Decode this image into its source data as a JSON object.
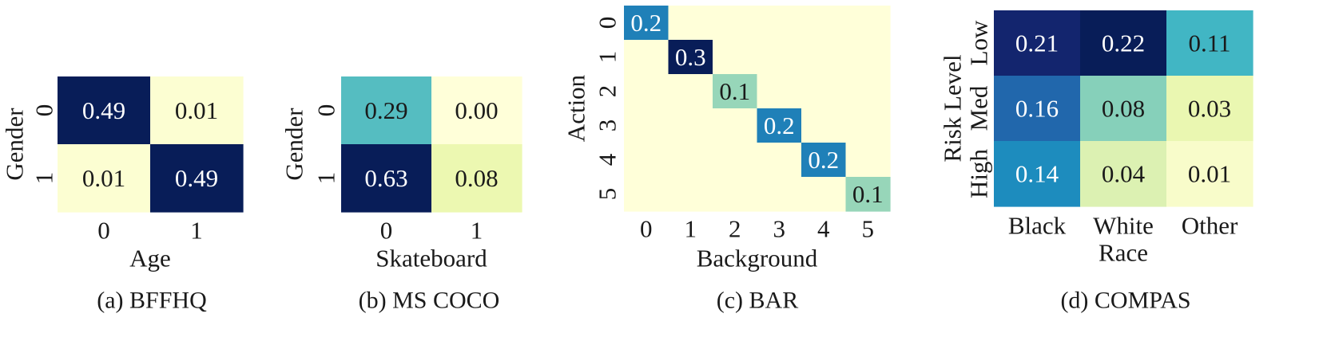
{
  "chart_data": [
    {
      "type": "heatmap",
      "caption": "(a) BFFHQ",
      "xlabel": "Age",
      "ylabel": "Gender",
      "x_ticks": [
        "0",
        "1"
      ],
      "y_ticks": [
        "0",
        "1"
      ],
      "values": [
        [
          0.49,
          0.01
        ],
        [
          0.01,
          0.49
        ]
      ],
      "labels": [
        [
          "0.49",
          "0.01"
        ],
        [
          "0.01",
          "0.49"
        ]
      ],
      "vmax": 0.49
    },
    {
      "type": "heatmap",
      "caption": "(b) MS COCO",
      "xlabel": "Skateboard",
      "ylabel": "Gender",
      "x_ticks": [
        "0",
        "1"
      ],
      "y_ticks": [
        "0",
        "1"
      ],
      "values": [
        [
          0.29,
          0.0
        ],
        [
          0.63,
          0.08
        ]
      ],
      "labels": [
        [
          "0.29",
          "0.00"
        ],
        [
          "0.63",
          "0.08"
        ]
      ],
      "vmax": 0.63
    },
    {
      "type": "heatmap",
      "caption": "(c) BAR",
      "xlabel": "Background",
      "ylabel": "Action",
      "x_ticks": [
        "0",
        "1",
        "2",
        "3",
        "4",
        "5"
      ],
      "y_ticks": [
        "0",
        "1",
        "2",
        "3",
        "4",
        "5"
      ],
      "values": [
        [
          0.2,
          0,
          0,
          0,
          0,
          0
        ],
        [
          0,
          0.3,
          0,
          0,
          0,
          0
        ],
        [
          0,
          0,
          0.1,
          0,
          0,
          0
        ],
        [
          0,
          0,
          0,
          0.2,
          0,
          0
        ],
        [
          0,
          0,
          0,
          0,
          0.2,
          0
        ],
        [
          0,
          0,
          0,
          0,
          0,
          0.1
        ]
      ],
      "labels": [
        [
          "0.2",
          "",
          "",
          "",
          "",
          ""
        ],
        [
          "",
          "0.3",
          "",
          "",
          "",
          ""
        ],
        [
          "",
          "",
          "0.1",
          "",
          "",
          ""
        ],
        [
          "",
          "",
          "",
          "0.2",
          "",
          ""
        ],
        [
          "",
          "",
          "",
          "",
          "0.2",
          ""
        ],
        [
          "",
          "",
          "",
          "",
          "",
          "0.1"
        ]
      ],
      "vmax": 0.3
    },
    {
      "type": "heatmap",
      "caption": "(d) COMPAS",
      "xlabel": "Race",
      "ylabel": "Risk Level",
      "x_ticks": [
        "Black",
        "White",
        "Other"
      ],
      "y_ticks": [
        "Low",
        "Med",
        "High"
      ],
      "values": [
        [
          0.21,
          0.22,
          0.11
        ],
        [
          0.16,
          0.08,
          0.03
        ],
        [
          0.14,
          0.04,
          0.01
        ]
      ],
      "labels": [
        [
          "0.21",
          "0.22",
          "0.11"
        ],
        [
          "0.16",
          "0.08",
          "0.03"
        ],
        [
          "0.14",
          "0.04",
          "0.01"
        ]
      ],
      "vmax": 0.22
    }
  ]
}
